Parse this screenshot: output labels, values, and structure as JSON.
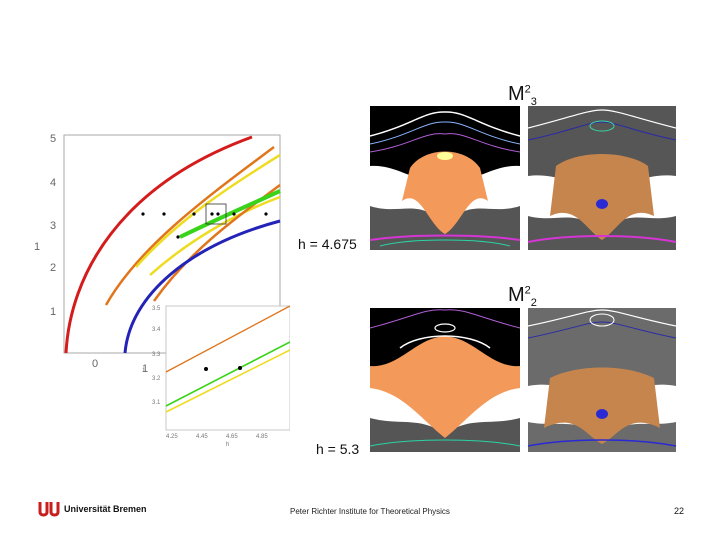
{
  "labels": {
    "m23": {
      "base": "M",
      "sup": "2",
      "sub": "3"
    },
    "m22": {
      "base": "M",
      "sup": "2",
      "sub": "2"
    },
    "h_top": "h = 4.675",
    "h_bottom": "h = 5.3"
  },
  "footer": {
    "logo": "Universität Bremen",
    "center": "Peter Richter Institute for Theoretical Physics",
    "page": "22"
  },
  "main_plot": {
    "y_ticks": [
      "5",
      "4",
      "3",
      "2",
      "1"
    ],
    "y_label": "1",
    "x_tick": "0",
    "x_label": "1"
  },
  "inset": {
    "y_ticks": [
      "3.5",
      "3.4",
      "3.3",
      "3.2",
      "3.1"
    ],
    "x_ticks": [
      "4.25",
      "4.45",
      "4.65",
      "4.85"
    ],
    "x_label": "h",
    "y_label": "1"
  },
  "colors": {
    "red": "#d41c1c",
    "orange": "#e0751c",
    "yellow": "#eedc22",
    "green": "#39d41a",
    "blue": "#2323b8"
  }
}
